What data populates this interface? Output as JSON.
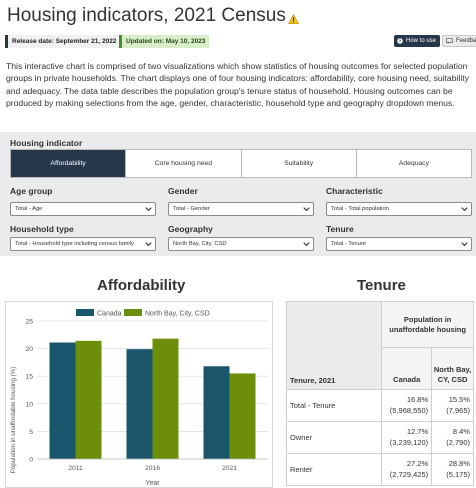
{
  "header": {
    "title": "Housing indicators, 2021 Census",
    "release_label": "Release date: September 21, 2022",
    "updated_label": "Updated on: May 10, 2023",
    "how_to_label": "How to use",
    "feedback_label": "Feedback"
  },
  "intro_text": "This interactive chart is comprised of two visualizations which show statistics of housing outcomes for selected population groups in private households. The chart displays one of four housing indicators: affordability, core housing need, suitability and adequacy. The data table describes the population group's tenure status of household. Housing outcomes can be produced by making selections from the age, gender, characteristic, household type and geography dropdown menus.",
  "indicator": {
    "label": "Housing indicator",
    "tabs": [
      "Affordability",
      "Core housing need",
      "Suitability",
      "Adequacy"
    ],
    "active_index": 0
  },
  "filters": {
    "age": {
      "label": "Age group",
      "value": "Total - Age"
    },
    "gender": {
      "label": "Gender",
      "value": "Total - Gender"
    },
    "characteristic": {
      "label": "Characteristic",
      "value": "Total - Total population"
    },
    "household": {
      "label": "Household type",
      "value": "Total - Household type including census family"
    },
    "geography": {
      "label": "Geography",
      "value": "North Bay, City, CSD"
    },
    "tenure": {
      "label": "Tenure",
      "value": "Total - Tenure"
    }
  },
  "chart_section": {
    "title": "Affordability"
  },
  "chart_data": {
    "type": "bar",
    "categories": [
      "2011",
      "2016",
      "2021"
    ],
    "series": [
      {
        "name": "Canada",
        "values": [
          21.1,
          19.9,
          16.8
        ],
        "color": "#19556b"
      },
      {
        "name": "North Bay, City, CSD",
        "values": [
          21.4,
          21.8,
          15.5
        ],
        "color": "#6d8e0b"
      }
    ],
    "ylim": [
      0,
      25
    ],
    "yticks": [
      "0",
      "5",
      "10",
      "15",
      "20",
      "25"
    ],
    "xlabel": "Year",
    "ylabel": "Population in unaffordable housing (%)",
    "legend": "top",
    "grid": true
  },
  "table_section": {
    "title": "Tenure",
    "corner_header": "Tenure, 2021",
    "group_header": "Population in unaffordable housing",
    "col_canada": "Canada",
    "col_local": "North Bay, CY, CSD",
    "rows": [
      {
        "label": "Total - Tenure",
        "canada_pct": "16.8%",
        "canada_count": "(5,968,550)",
        "local_pct": "15.5%",
        "local_count": "(7,965)"
      },
      {
        "label": "Owner",
        "canada_pct": "12.7%",
        "canada_count": "(3,239,120)",
        "local_pct": "8.4%",
        "local_count": "(2,790)"
      },
      {
        "label": "Renter",
        "canada_pct": "27.2%",
        "canada_count": "(2,729,425)",
        "local_pct": "28.8%",
        "local_count": "(5,175)"
      }
    ]
  },
  "colors": {
    "accent": "#26374a",
    "canada": "#19556b",
    "local": "#6d8e0b",
    "warning": "#f0c419"
  }
}
